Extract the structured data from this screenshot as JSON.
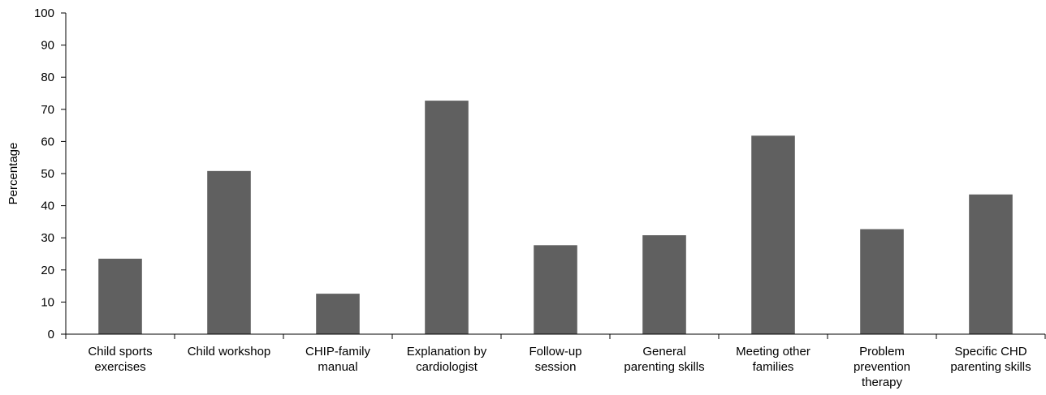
{
  "chart_data": {
    "type": "bar",
    "title": "",
    "xlabel": "",
    "ylabel": "Percentage",
    "ylim": [
      0,
      100
    ],
    "yticks": [
      0,
      10,
      20,
      30,
      40,
      50,
      60,
      70,
      80,
      90,
      100
    ],
    "grid": false,
    "legend": "none",
    "bar_color": "#606060",
    "categories": [
      [
        "Child sports",
        "exercises"
      ],
      [
        "Child workshop"
      ],
      [
        "CHIP-family",
        "manual"
      ],
      [
        "Explanation by",
        "cardiologist"
      ],
      [
        "Follow-up",
        "session"
      ],
      [
        "General",
        "parenting skills"
      ],
      [
        "Meeting other",
        "families"
      ],
      [
        "Problem",
        "prevention",
        "therapy"
      ],
      [
        "Specific CHD",
        "parenting skills"
      ]
    ],
    "values": [
      23.5,
      50.8,
      12.6,
      72.7,
      27.7,
      30.8,
      61.8,
      32.7,
      43.5
    ]
  }
}
